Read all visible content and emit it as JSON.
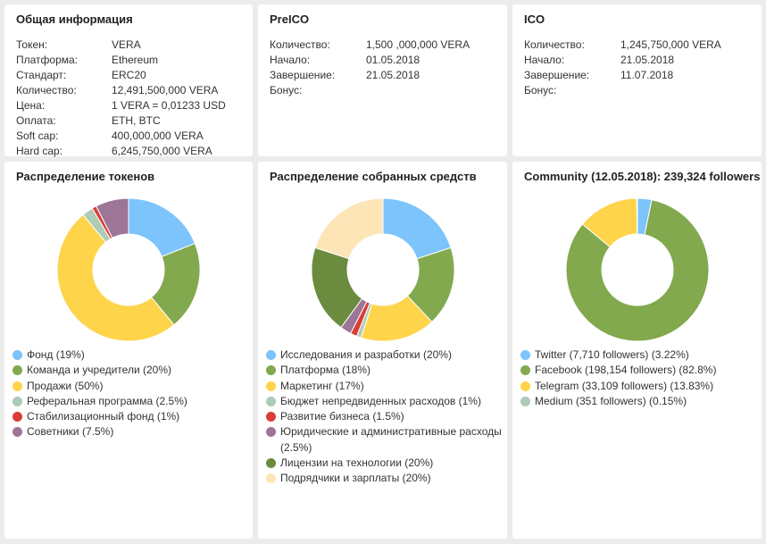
{
  "general": {
    "title": "Общая информация",
    "rows": [
      {
        "k": "Токен:",
        "v": "VERA"
      },
      {
        "k": "Платформа:",
        "v": "Ethereum"
      },
      {
        "k": "Стандарт:",
        "v": "ERC20"
      },
      {
        "k": "Количество:",
        "v": "12,491,500,000 VERA"
      },
      {
        "k": "Цена:",
        "v": "1 VERA = 0,01233 USD"
      },
      {
        "k": "Оплата:",
        "v": "ETH, BTC"
      },
      {
        "k": "Soft cap:",
        "v": "400,000,000 VERA"
      },
      {
        "k": "Hard cap:",
        "v": "6,245,750,000 VERA"
      }
    ]
  },
  "preico": {
    "title": "PreICO",
    "rows": [
      {
        "k": "Количество:",
        "v": "1,500 ,000,000 VERA"
      },
      {
        "k": "Начало:",
        "v": "01.05.2018"
      },
      {
        "k": "Завершение:",
        "v": "21.05.2018"
      },
      {
        "k": "Бонус:",
        "v": ""
      }
    ]
  },
  "ico": {
    "title": "ICO",
    "rows": [
      {
        "k": "Количество:",
        "v": "1,245,750,000 VERA"
      },
      {
        "k": "Начало:",
        "v": "21.05.2018"
      },
      {
        "k": "Завершение:",
        "v": "11.07.2018"
      },
      {
        "k": "Бонус:",
        "v": ""
      }
    ]
  },
  "chart_data": [
    {
      "type": "pie",
      "title": "Распределение токенов",
      "slices": [
        {
          "label": "Фонд (19%)",
          "value": 19,
          "color": "#7cc4fb"
        },
        {
          "label": "Команда и учредители (20%)",
          "value": 20,
          "color": "#82a94d"
        },
        {
          "label": "Продажи (50%)",
          "value": 50,
          "color": "#fed44b"
        },
        {
          "label": "Реферальная программа (2.5%)",
          "value": 2.5,
          "color": "#aecbb5"
        },
        {
          "label": "Стабилизационный фонд (1%)",
          "value": 1,
          "color": "#d93e36"
        },
        {
          "label": "Советники (7.5%)",
          "value": 7.5,
          "color": "#9d7597"
        }
      ]
    },
    {
      "type": "pie",
      "title": "Распределение собранных средств",
      "slices": [
        {
          "label": "Исследования и разработки (20%)",
          "value": 20,
          "color": "#7cc4fb"
        },
        {
          "label": "Платформа (18%)",
          "value": 18,
          "color": "#82a94d"
        },
        {
          "label": "Маркетинг (17%)",
          "value": 17,
          "color": "#fed44b"
        },
        {
          "label": "Бюджет непредвиденных расходов (1%)",
          "value": 1,
          "color": "#aecbb5"
        },
        {
          "label": "Развитие бизнеса (1.5%)",
          "value": 1.5,
          "color": "#d93e36"
        },
        {
          "label": "Юридические и административные расходы (2.5%)",
          "value": 2.5,
          "color": "#9d7597"
        },
        {
          "label": "Лицензии на технологии (20%)",
          "value": 20,
          "color": "#6b8c3e"
        },
        {
          "label": "Подрядчики и зарплаты (20%)",
          "value": 20,
          "color": "#fde5b8"
        }
      ]
    },
    {
      "type": "pie",
      "title": "Community (12.05.2018): 239,324 followers",
      "slices": [
        {
          "label": "Twitter (7,710 followers) (3.22%)",
          "value": 3.22,
          "color": "#7cc4fb"
        },
        {
          "label": "Facebook (198,154 followers) (82.8%)",
          "value": 82.8,
          "color": "#82a94d"
        },
        {
          "label": "Telegram (33,109 followers) (13.83%)",
          "value": 13.83,
          "color": "#fed44b"
        },
        {
          "label": "Medium (351 followers) (0.15%)",
          "value": 0.15,
          "color": "#aecbb5"
        }
      ]
    }
  ]
}
